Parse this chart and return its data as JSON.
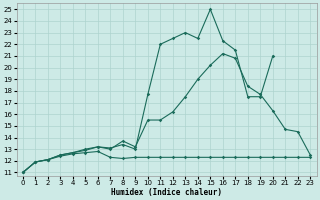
{
  "xlabel": "Humidex (Indice chaleur)",
  "bg_color": "#cdeae6",
  "grid_color": "#aed4cf",
  "line_color": "#1a6b5a",
  "xlim": [
    -0.5,
    23.5
  ],
  "ylim": [
    10.7,
    25.5
  ],
  "xticks": [
    0,
    1,
    2,
    3,
    4,
    5,
    6,
    7,
    8,
    9,
    10,
    11,
    12,
    13,
    14,
    15,
    16,
    17,
    18,
    19,
    20,
    21,
    22,
    23
  ],
  "yticks": [
    11,
    12,
    13,
    14,
    15,
    16,
    17,
    18,
    19,
    20,
    21,
    22,
    23,
    24,
    25
  ],
  "line1_x": [
    0,
    1,
    2,
    3,
    4,
    5,
    6,
    7,
    8,
    9,
    10,
    11,
    12,
    13,
    14,
    15,
    16,
    17,
    18,
    19,
    20,
    21,
    22,
    23
  ],
  "line1_y": [
    11,
    11.9,
    12.1,
    12.4,
    12.6,
    12.7,
    12.8,
    12.3,
    12.2,
    12.3,
    12.3,
    12.3,
    12.3,
    12.3,
    12.3,
    12.3,
    12.3,
    12.3,
    12.3,
    12.3,
    12.3,
    12.3,
    12.3,
    12.3
  ],
  "line2_x": [
    0,
    1,
    2,
    3,
    4,
    5,
    6,
    7,
    8,
    9,
    10,
    11,
    12,
    13,
    14,
    15,
    16,
    17,
    18,
    19,
    20
  ],
  "line2_y": [
    11,
    11.9,
    12.1,
    12.5,
    12.7,
    13.0,
    13.2,
    13.1,
    13.4,
    13.0,
    17.7,
    22.0,
    22.5,
    23.0,
    22.5,
    25.0,
    22.3,
    21.5,
    17.5,
    17.5,
    21.0
  ],
  "line3_x": [
    0,
    1,
    2,
    3,
    4,
    5,
    6,
    7,
    8,
    9,
    10,
    11,
    12,
    13,
    14,
    15,
    16,
    17,
    18,
    19,
    20,
    21,
    22,
    23
  ],
  "line3_y": [
    11,
    11.9,
    12.1,
    12.5,
    12.7,
    12.9,
    13.2,
    13.0,
    13.7,
    13.2,
    15.5,
    15.5,
    16.2,
    17.5,
    19.0,
    20.2,
    21.2,
    20.8,
    18.4,
    17.7,
    16.3,
    14.7,
    14.5,
    12.5
  ]
}
